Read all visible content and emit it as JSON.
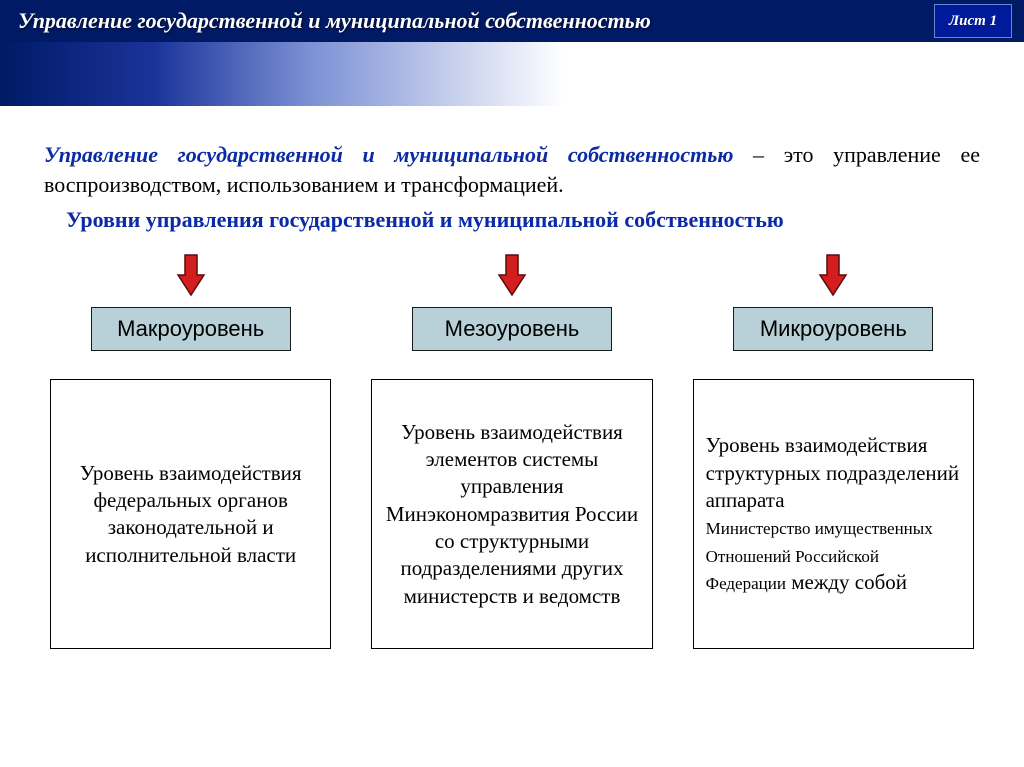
{
  "header": {
    "title": "Управление государственной и муниципальной собственностью",
    "sheet_label": "Лист 1",
    "bg_color": "#001a66",
    "text_color": "#ffffff"
  },
  "gradient": {
    "from": "#001a66",
    "to": "#ffffff"
  },
  "definition": {
    "term": "Управление государственной и муниципальной собственностью",
    "dash": " – ",
    "rest": "это управление ее воспроизводством, использованием и трансформацией.",
    "term_color": "#0b2aa5",
    "font_size": 22
  },
  "subtitle": {
    "text": "Уровни управления государственной и муниципальной собственностью",
    "color": "#0b2aa5",
    "font_size": 22
  },
  "arrow": {
    "fill": "#d21e1e",
    "stroke": "#5a0c0c",
    "width": 30,
    "height": 44
  },
  "level_badge": {
    "bg": "#b8d1d8",
    "border": "#1a1a1a",
    "font_size": 22
  },
  "columns": [
    {
      "label": "Макроуровень",
      "description_html": "Уровень взаимодействия федеральных органов законодательной и исполнительной власти",
      "align": "center"
    },
    {
      "label": "Мезоуровень",
      "description_html": "Уровень взаимодействия элементов системы управления Минэкономразвития России<br>со структурными подразделениями других министерств и ведомств",
      "align": "center"
    },
    {
      "label": "Микроуровень",
      "description_html": "Уровень взаимодействия структурных подразделений аппарата<br><span class=\"small\">Министерство имущественных Отношений Российской Федерации</span> между собой",
      "align": "left"
    }
  ]
}
